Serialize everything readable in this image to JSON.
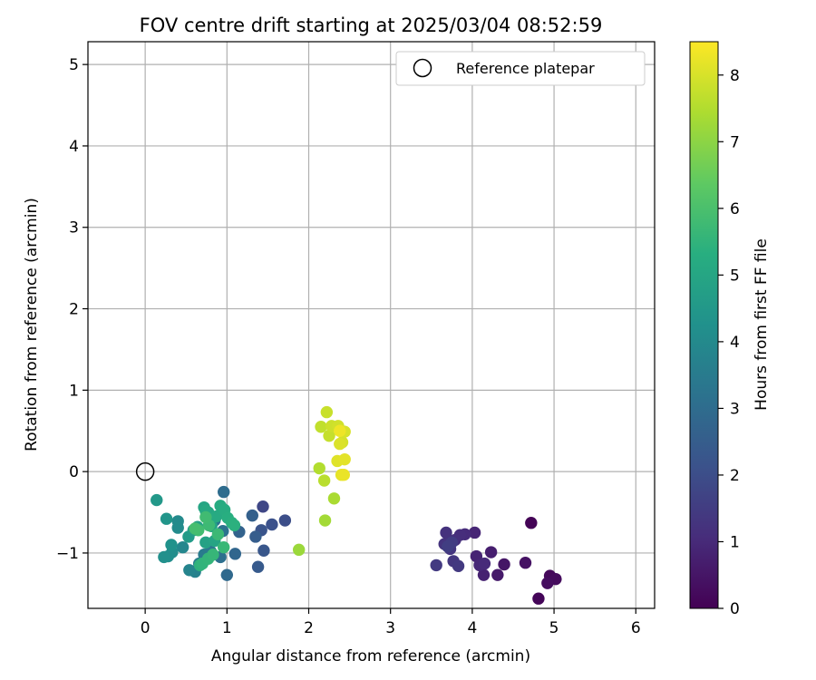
{
  "chart_data": {
    "type": "scatter",
    "title": "FOV centre drift starting at 2025/03/04 08:52:59",
    "xlabel": "Angular distance from reference (arcmin)",
    "ylabel": "Rotation from reference (arcmin)",
    "xlim": [
      -0.7,
      6.23
    ],
    "ylim": [
      -1.68,
      5.28
    ],
    "x_ticks": [
      "0",
      "1",
      "2",
      "3",
      "4",
      "5",
      "6"
    ],
    "y_ticks": [
      "−1",
      "0",
      "1",
      "2",
      "3",
      "4",
      "5"
    ],
    "grid": true,
    "legend_position": "top-right",
    "reference": {
      "name": "Reference platepar",
      "x": 0.0,
      "y": 0.0
    },
    "colorbar": {
      "label": "Hours from first FF file",
      "colormap": "viridis",
      "range": [
        0,
        8.5
      ],
      "ticks": [
        "0",
        "1",
        "2",
        "3",
        "4",
        "5",
        "6",
        "7",
        "8"
      ]
    },
    "points": [
      [
        4.72,
        -0.63,
        0.05
      ],
      [
        4.81,
        -1.56,
        0.1
      ],
      [
        4.95,
        -1.28,
        0.2
      ],
      [
        5.02,
        -1.32,
        0.25
      ],
      [
        4.92,
        -1.37,
        0.3
      ],
      [
        4.65,
        -1.12,
        0.4
      ],
      [
        4.39,
        -1.14,
        0.5
      ],
      [
        4.31,
        -1.27,
        0.6
      ],
      [
        4.23,
        -0.99,
        0.7
      ],
      [
        4.14,
        -1.27,
        0.8
      ],
      [
        4.05,
        -1.04,
        0.85
      ],
      [
        4.03,
        -0.75,
        0.9
      ],
      [
        4.09,
        -1.15,
        0.95
      ],
      [
        4.15,
        -1.13,
        1.0
      ],
      [
        3.91,
        -0.77,
        1.05
      ],
      [
        3.85,
        -0.78,
        1.1
      ],
      [
        3.79,
        -0.84,
        1.15
      ],
      [
        3.68,
        -0.75,
        1.2
      ],
      [
        3.66,
        -0.89,
        1.25
      ],
      [
        3.73,
        -0.95,
        1.3
      ],
      [
        3.77,
        -1.1,
        1.35
      ],
      [
        3.83,
        -1.16,
        1.4
      ],
      [
        3.56,
        -1.15,
        1.45
      ],
      [
        3.75,
        -0.87,
        1.5
      ],
      [
        3.7,
        -0.92,
        1.55
      ],
      [
        1.44,
        -0.43,
        1.8
      ],
      [
        1.71,
        -0.6,
        2.0
      ],
      [
        1.55,
        -0.65,
        2.1
      ],
      [
        1.42,
        -0.72,
        2.2
      ],
      [
        1.45,
        -0.97,
        2.3
      ],
      [
        1.38,
        -1.17,
        2.4
      ],
      [
        1.35,
        -0.8,
        2.5
      ],
      [
        1.31,
        -0.54,
        2.6
      ],
      [
        1.15,
        -0.74,
        2.7
      ],
      [
        1.1,
        -1.01,
        2.8
      ],
      [
        1.0,
        -1.27,
        2.9
      ],
      [
        0.96,
        -0.25,
        3.0
      ],
      [
        0.92,
        -1.05,
        3.1
      ],
      [
        0.95,
        -0.73,
        3.2
      ],
      [
        0.85,
        -0.6,
        3.3
      ],
      [
        0.8,
        -0.98,
        3.4
      ],
      [
        0.72,
        -1.02,
        3.5
      ],
      [
        0.66,
        -1.13,
        3.6
      ],
      [
        0.61,
        -1.23,
        3.7
      ],
      [
        0.54,
        -1.21,
        3.8
      ],
      [
        0.46,
        -0.93,
        3.9
      ],
      [
        0.4,
        -0.61,
        4.0
      ],
      [
        0.4,
        -0.69,
        4.05
      ],
      [
        0.33,
        -0.99,
        4.1
      ],
      [
        0.28,
        -1.04,
        4.15
      ],
      [
        0.23,
        -1.05,
        4.2
      ],
      [
        0.32,
        -0.9,
        4.3
      ],
      [
        0.26,
        -0.58,
        4.4
      ],
      [
        0.14,
        -0.35,
        4.5
      ],
      [
        0.53,
        -0.8,
        4.6
      ],
      [
        0.59,
        -0.72,
        4.7
      ],
      [
        0.64,
        -0.68,
        4.8
      ],
      [
        0.74,
        -0.87,
        4.85
      ],
      [
        0.81,
        -0.67,
        4.9
      ],
      [
        0.85,
        -0.85,
        4.95
      ],
      [
        0.72,
        -0.44,
        5.0
      ],
      [
        0.77,
        -0.5,
        5.05
      ],
      [
        0.74,
        -0.48,
        5.1
      ],
      [
        0.87,
        -0.55,
        5.15
      ],
      [
        0.92,
        -0.42,
        5.2
      ],
      [
        0.97,
        -0.47,
        5.25
      ],
      [
        1.01,
        -0.57,
        5.3
      ],
      [
        1.06,
        -0.63,
        5.35
      ],
      [
        1.09,
        -0.66,
        5.4
      ],
      [
        0.67,
        -1.15,
        5.45
      ],
      [
        0.7,
        -1.13,
        5.5
      ],
      [
        0.77,
        -1.07,
        5.55
      ],
      [
        0.83,
        -1.02,
        5.6
      ],
      [
        0.96,
        -0.93,
        5.65
      ],
      [
        0.89,
        -0.77,
        5.7
      ],
      [
        0.78,
        -0.66,
        5.75
      ],
      [
        0.74,
        -0.56,
        5.8
      ],
      [
        0.65,
        -0.72,
        5.85
      ],
      [
        0.61,
        -0.7,
        5.9
      ],
      [
        1.88,
        -0.96,
        7.2
      ],
      [
        2.2,
        -0.6,
        7.3
      ],
      [
        2.31,
        -0.33,
        7.4
      ],
      [
        2.13,
        0.04,
        7.5
      ],
      [
        2.19,
        -0.11,
        7.6
      ],
      [
        2.15,
        0.55,
        7.7
      ],
      [
        2.25,
        0.44,
        7.75
      ],
      [
        2.22,
        0.73,
        7.8
      ],
      [
        2.28,
        0.56,
        7.85
      ],
      [
        2.36,
        0.56,
        7.9
      ],
      [
        2.41,
        0.36,
        7.95
      ],
      [
        2.44,
        0.49,
        8.0
      ],
      [
        2.38,
        0.34,
        8.05
      ],
      [
        2.35,
        0.13,
        8.1
      ],
      [
        2.44,
        0.15,
        8.15
      ],
      [
        2.4,
        -0.04,
        8.2
      ],
      [
        2.43,
        -0.04,
        8.25
      ],
      [
        2.38,
        0.5,
        8.3
      ]
    ]
  }
}
